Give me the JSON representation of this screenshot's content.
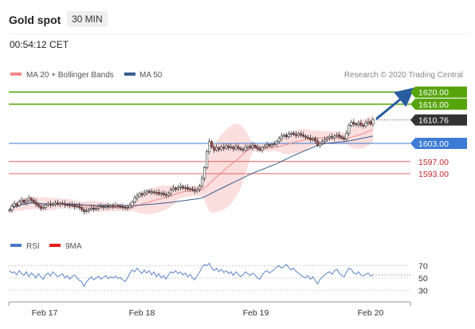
{
  "header": {
    "title": "Gold spot",
    "timeframe": "30 MIN",
    "time": "00:54:12 CET"
  },
  "colors": {
    "green": "#56a40c",
    "blue_level": "#3d7bd4",
    "red_level": "#e06060",
    "red_text": "#c8282c",
    "ma20": "#f08a8a",
    "band_fill": "#fbdada",
    "ma50": "#3a5d8f",
    "candle_up": "#ffffff",
    "candle_down": "#c04848",
    "rsi": "#4a78c8",
    "arrow": "#2a5d9f"
  },
  "chart_data": [
    {
      "type": "candlestick",
      "title": "Gold spot",
      "timeframe": "30 MIN",
      "legend": [
        {
          "name": "MA 20 + Bollinger Bands",
          "color": "#f08a8a"
        },
        {
          "name": "MA 50",
          "color": "#3a5d8f"
        }
      ],
      "copyright": "Research © 2020 Trading Central",
      "x_ticks": [
        "Feb 17",
        "Feb 18",
        "Feb 19",
        "Feb 20"
      ],
      "ylim": [
        1574,
        1622
      ],
      "current_price": "1610.76",
      "levels": [
        {
          "value": 1620.0,
          "label": "1620.00",
          "kind": "resistance"
        },
        {
          "value": 1616.0,
          "label": "1616.00",
          "kind": "resistance"
        },
        {
          "value": 1603.0,
          "label": "1603.00",
          "kind": "pivot"
        },
        {
          "value": 1597.0,
          "label": "1597.00",
          "kind": "support"
        },
        {
          "value": 1593.0,
          "label": "1593.00",
          "kind": "support"
        }
      ],
      "series_close": [
        1581.0,
        1582.2,
        1583.0,
        1582.5,
        1583.6,
        1584.2,
        1583.4,
        1584.0,
        1584.8,
        1584.2,
        1583.6,
        1582.8,
        1582.2,
        1581.5,
        1581.8,
        1582.6,
        1583.0,
        1582.6,
        1582.9,
        1583.3,
        1582.8,
        1583.2,
        1583.0,
        1582.6,
        1582.7,
        1582.4,
        1582.6,
        1582.0,
        1582.3,
        1581.8,
        1581.0,
        1580.4,
        1580.8,
        1581.2,
        1581.6,
        1581.2,
        1581.5,
        1582.0,
        1582.2,
        1581.8,
        1582.2,
        1582.0,
        1582.4,
        1582.1,
        1582.5,
        1582.2,
        1582.0,
        1581.9,
        1581.6,
        1581.8,
        1582.4,
        1583.6,
        1585.0,
        1585.6,
        1586.4,
        1586.0,
        1586.6,
        1587.2,
        1586.8,
        1587.0,
        1586.6,
        1586.8,
        1586.2,
        1586.6,
        1586.0,
        1585.8,
        1586.4,
        1587.6,
        1588.2,
        1587.8,
        1588.4,
        1588.8,
        1588.2,
        1588.4,
        1587.8,
        1588.0,
        1587.6,
        1587.2,
        1587.8,
        1588.8,
        1591.4,
        1595.0,
        1600.2,
        1603.6,
        1601.8,
        1600.8,
        1601.6,
        1601.0,
        1601.8,
        1601.4,
        1602.2,
        1601.6,
        1601.8,
        1601.2,
        1602.0,
        1601.4,
        1601.0,
        1600.8,
        1601.6,
        1602.0,
        1601.6,
        1602.4,
        1601.8,
        1601.2,
        1600.8,
        1601.6,
        1602.0,
        1602.6,
        1602.2,
        1602.6,
        1602.8,
        1603.6,
        1604.6,
        1605.4,
        1605.8,
        1605.2,
        1606.0,
        1606.4,
        1606.0,
        1605.6,
        1606.2,
        1605.8,
        1605.4,
        1605.0,
        1604.8,
        1604.2,
        1604.6,
        1603.8,
        1602.4,
        1603.0,
        1603.6,
        1604.2,
        1604.8,
        1605.2,
        1604.8,
        1605.4,
        1605.8,
        1605.2,
        1604.8,
        1604.4,
        1606.4,
        1609.0,
        1610.0,
        1609.4,
        1609.2,
        1609.8,
        1609.0,
        1608.8,
        1609.8,
        1610.2,
        1609.4,
        1610.8
      ],
      "rsi": {
        "name": "RSI",
        "ma_name": "9MA",
        "levels": [
          70,
          50,
          30
        ],
        "ylim": [
          20,
          85
        ],
        "values": [
          62,
          58,
          60,
          55,
          62,
          57,
          54,
          60,
          52,
          58,
          55,
          50,
          57,
          52,
          48,
          55,
          58,
          53,
          60,
          56,
          52,
          54,
          57,
          50,
          54,
          48,
          52,
          55,
          50,
          46,
          44,
          36,
          44,
          48,
          52,
          47,
          50,
          53,
          48,
          51,
          54,
          49,
          52,
          50,
          53,
          49,
          51,
          47,
          44,
          50,
          58,
          63,
          60,
          66,
          61,
          57,
          63,
          58,
          62,
          55,
          60,
          52,
          57,
          50,
          54,
          48,
          55,
          60,
          58,
          62,
          57,
          60,
          55,
          58,
          52,
          56,
          50,
          47,
          54,
          60,
          68,
          72,
          70,
          74,
          66,
          62,
          66,
          60,
          64,
          59,
          62,
          57,
          60,
          54,
          60,
          56,
          52,
          55,
          60,
          57,
          54,
          58,
          55,
          50,
          48,
          55,
          60,
          62,
          58,
          61,
          64,
          68,
          70,
          66,
          69,
          72,
          67,
          63,
          66,
          61,
          58,
          55,
          52,
          50,
          54,
          48,
          52,
          46,
          40,
          48,
          52,
          55,
          58,
          60,
          56,
          62,
          64,
          58,
          54,
          52,
          60,
          66,
          64,
          58,
          56,
          60,
          55,
          53,
          56,
          58,
          53,
          55
        ]
      }
    }
  ]
}
